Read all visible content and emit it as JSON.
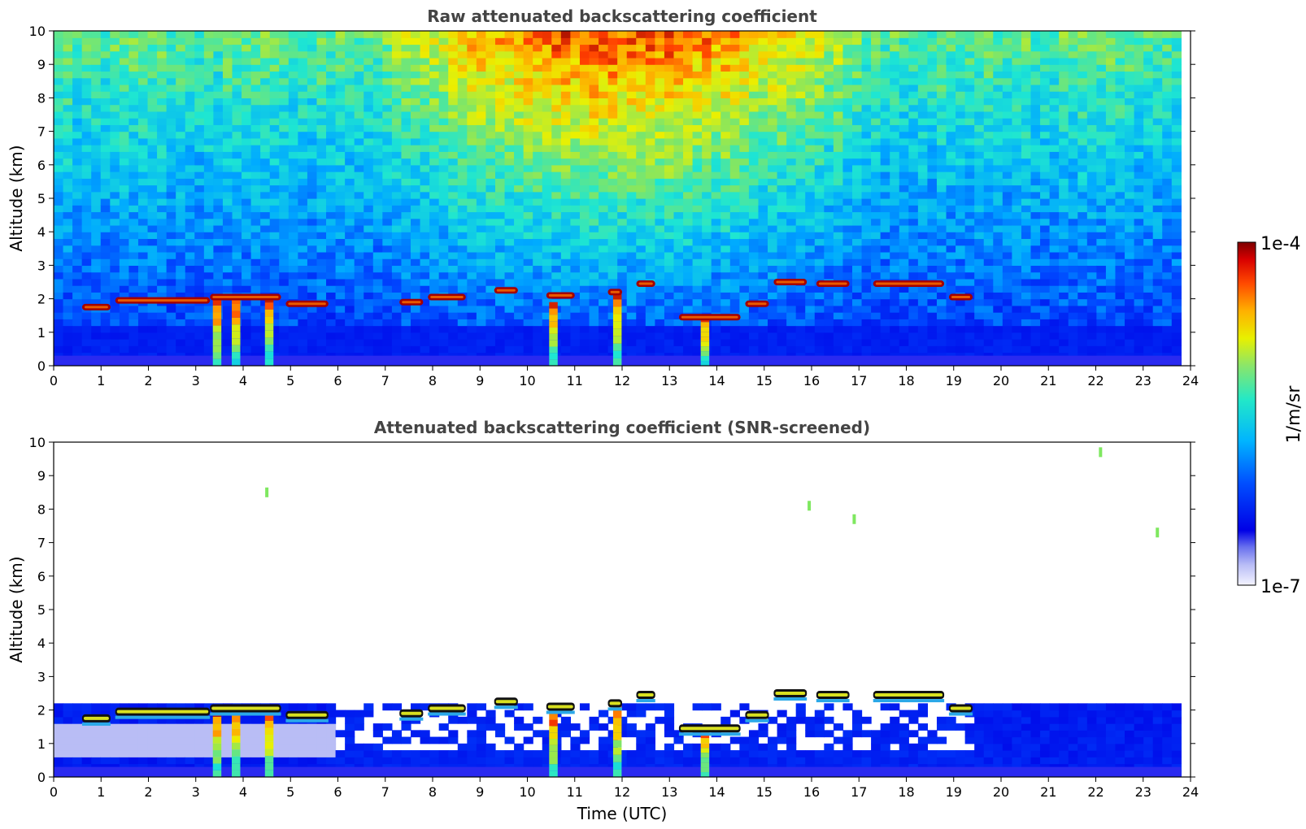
{
  "chart_data": [
    {
      "type": "heatmap",
      "title": "Raw attenuated backscattering coefficient",
      "xlabel": "",
      "ylabel": "Altitude (km)",
      "xlim": [
        0,
        24
      ],
      "ylim": [
        0,
        10
      ],
      "x_ticks": [
        "0",
        "1",
        "2",
        "3",
        "4",
        "5",
        "6",
        "7",
        "8",
        "9",
        "10",
        "11",
        "12",
        "13",
        "14",
        "15",
        "16",
        "17",
        "18",
        "19",
        "20",
        "21",
        "22",
        "23",
        "24"
      ],
      "y_ticks": [
        "0",
        "1",
        "2",
        "3",
        "4",
        "5",
        "6",
        "7",
        "8",
        "9",
        "10"
      ],
      "data_end_time": 23.8,
      "screened": false,
      "cloud_layers": [
        {
          "t0": 0.6,
          "t1": 1.2,
          "alt": 1.75
        },
        {
          "t0": 1.3,
          "t1": 3.3,
          "alt": 1.95
        },
        {
          "t0": 3.3,
          "t1": 4.8,
          "alt": 2.05
        },
        {
          "t0": 4.9,
          "t1": 5.8,
          "alt": 1.85
        },
        {
          "t0": 7.3,
          "t1": 7.8,
          "alt": 1.9
        },
        {
          "t0": 7.9,
          "t1": 8.7,
          "alt": 2.05
        },
        {
          "t0": 9.3,
          "t1": 9.8,
          "alt": 2.25
        },
        {
          "t0": 10.4,
          "t1": 11.0,
          "alt": 2.1
        },
        {
          "t0": 11.7,
          "t1": 12.0,
          "alt": 2.2
        },
        {
          "t0": 12.3,
          "t1": 12.7,
          "alt": 2.45
        },
        {
          "t0": 13.2,
          "t1": 14.5,
          "alt": 1.45
        },
        {
          "t0": 14.6,
          "t1": 15.1,
          "alt": 1.85
        },
        {
          "t0": 15.2,
          "t1": 15.9,
          "alt": 2.5
        },
        {
          "t0": 16.1,
          "t1": 16.8,
          "alt": 2.45
        },
        {
          "t0": 17.3,
          "t1": 18.8,
          "alt": 2.45
        },
        {
          "t0": 18.9,
          "t1": 19.4,
          "alt": 2.05
        }
      ],
      "precip_columns": [
        {
          "t": 3.45,
          "top": 2.0
        },
        {
          "t": 3.85,
          "top": 2.05
        },
        {
          "t": 4.55,
          "top": 2.1
        },
        {
          "t": 10.55,
          "top": 1.9
        },
        {
          "t": 11.9,
          "top": 2.2
        },
        {
          "t": 13.75,
          "top": 1.45
        }
      ]
    },
    {
      "type": "heatmap",
      "title": "Attenuated backscattering coefficient (SNR-screened)",
      "xlabel": "Time (UTC)",
      "ylabel": "Altitude (km)",
      "xlim": [
        0,
        24
      ],
      "ylim": [
        0,
        10
      ],
      "x_ticks": [
        "0",
        "1",
        "2",
        "3",
        "4",
        "5",
        "6",
        "7",
        "8",
        "9",
        "10",
        "11",
        "12",
        "13",
        "14",
        "15",
        "16",
        "17",
        "18",
        "19",
        "20",
        "21",
        "22",
        "23",
        "24"
      ],
      "y_ticks": [
        "0",
        "1",
        "2",
        "3",
        "4",
        "5",
        "6",
        "7",
        "8",
        "9",
        "10"
      ],
      "data_end_time": 23.8,
      "screened": true,
      "cloud_layers": [
        {
          "t0": 0.6,
          "t1": 1.2,
          "alt": 1.75
        },
        {
          "t0": 1.3,
          "t1": 3.3,
          "alt": 1.95
        },
        {
          "t0": 3.3,
          "t1": 4.8,
          "alt": 2.05
        },
        {
          "t0": 4.9,
          "t1": 5.8,
          "alt": 1.85
        },
        {
          "t0": 7.3,
          "t1": 7.8,
          "alt": 1.9
        },
        {
          "t0": 7.9,
          "t1": 8.7,
          "alt": 2.05
        },
        {
          "t0": 9.3,
          "t1": 9.8,
          "alt": 2.25
        },
        {
          "t0": 10.4,
          "t1": 11.0,
          "alt": 2.1
        },
        {
          "t0": 11.7,
          "t1": 12.0,
          "alt": 2.2
        },
        {
          "t0": 12.3,
          "t1": 12.7,
          "alt": 2.45
        },
        {
          "t0": 13.2,
          "t1": 14.5,
          "alt": 1.45
        },
        {
          "t0": 14.6,
          "t1": 15.1,
          "alt": 1.85
        },
        {
          "t0": 15.2,
          "t1": 15.9,
          "alt": 2.5
        },
        {
          "t0": 16.1,
          "t1": 16.8,
          "alt": 2.45
        },
        {
          "t0": 17.3,
          "t1": 18.8,
          "alt": 2.45
        },
        {
          "t0": 18.9,
          "t1": 19.4,
          "alt": 2.05
        }
      ],
      "precip_columns": [
        {
          "t": 3.45,
          "top": 2.0
        },
        {
          "t": 3.85,
          "top": 2.05
        },
        {
          "t": 4.55,
          "top": 2.1
        },
        {
          "t": 10.55,
          "top": 1.9
        },
        {
          "t": 11.9,
          "top": 2.2
        },
        {
          "t": 13.75,
          "top": 1.45
        }
      ],
      "isolated_points": [
        {
          "t": 16.9,
          "alt": 7.7
        },
        {
          "t": 23.3,
          "alt": 7.3
        },
        {
          "t": 22.1,
          "alt": 9.7
        },
        {
          "t": 15.95,
          "alt": 8.1
        },
        {
          "t": 4.5,
          "alt": 8.5
        }
      ]
    }
  ],
  "colorbar": {
    "label": "1/m/sr",
    "max_label": "1e-4",
    "min_label": "1e-7",
    "colormap": "jet",
    "scale": "log"
  }
}
